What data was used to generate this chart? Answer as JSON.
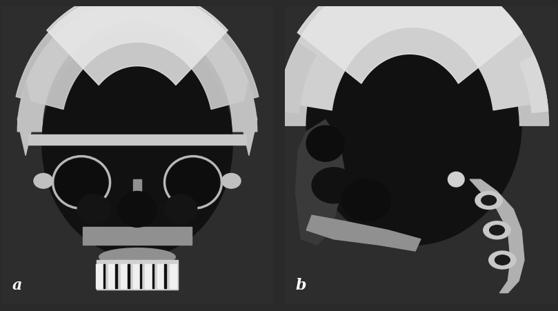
{
  "label_a": "a",
  "label_b": "b",
  "background_color": "#2a2a2a",
  "panel_bg": "#2d2d2d",
  "label_color": "white",
  "label_fontsize": 16,
  "label_fontweight": "bold",
  "fig_width": 8.09,
  "fig_height": 4.51,
  "dpi": 100,
  "bone_bright": "#e0e0e0",
  "bone_mid": "#c0c0c0",
  "bone_dark": "#909090",
  "cavity_dark": "#111111",
  "skull_bg": "#1e1e1e"
}
